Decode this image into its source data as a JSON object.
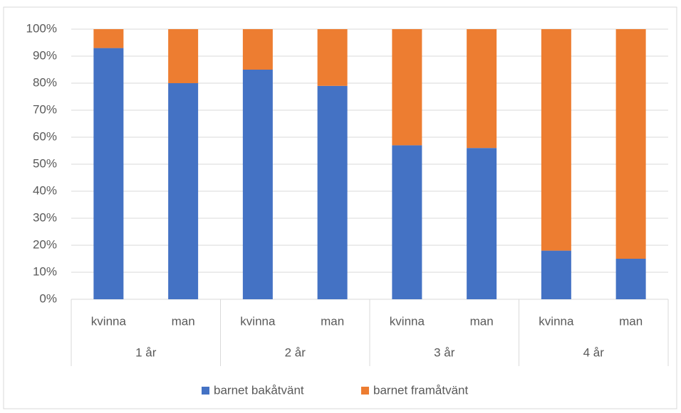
{
  "chart_data": {
    "type": "stacked_bar",
    "categories": [
      "kvinna",
      "man",
      "kvinna",
      "man",
      "kvinna",
      "man",
      "kvinna",
      "man"
    ],
    "groups": [
      "1 år",
      "2 år",
      "3 år",
      "4 år"
    ],
    "series": [
      {
        "name": "barnet bakåtvänt",
        "color": "#4472c4",
        "values": [
          93,
          80,
          85,
          79,
          57,
          56,
          18,
          15
        ]
      },
      {
        "name": "barnet framåtvänt",
        "color": "#ed7d31",
        "values": [
          7,
          20,
          15,
          21,
          43,
          44,
          82,
          85
        ]
      }
    ],
    "ylim": [
      0,
      100
    ],
    "yticks": [
      {
        "value": 0,
        "label": "0%"
      },
      {
        "value": 10,
        "label": "10%"
      },
      {
        "value": 20,
        "label": "20%"
      },
      {
        "value": 30,
        "label": "30%"
      },
      {
        "value": 40,
        "label": "40%"
      },
      {
        "value": 50,
        "label": "50%"
      },
      {
        "value": 60,
        "label": "60%"
      },
      {
        "value": 70,
        "label": "70%"
      },
      {
        "value": 80,
        "label": "80%"
      },
      {
        "value": 90,
        "label": "90%"
      },
      {
        "value": 100,
        "label": "100%"
      }
    ],
    "grid": true,
    "legend": "bottom"
  }
}
